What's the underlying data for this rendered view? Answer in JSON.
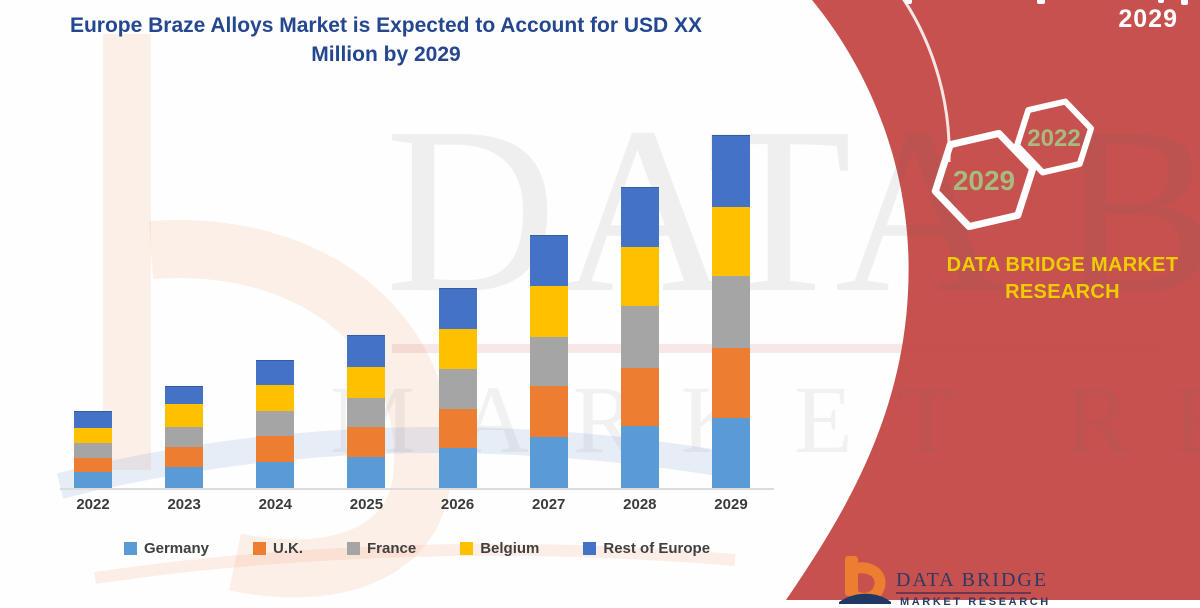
{
  "title": {
    "line1": "Europe Braze Alloys Market is Expected to Account for USD XX",
    "line2": "Million by 2029"
  },
  "chart_data": {
    "type": "bar",
    "stacked": true,
    "title": "Europe Braze Alloys Market is Expected to Account for USD XX Million by 2029",
    "categories": [
      "2022",
      "2023",
      "2024",
      "2025",
      "2026",
      "2027",
      "2028",
      "2029"
    ],
    "series": [
      {
        "name": "Germany",
        "color": "#5B9BD5",
        "values": [
          16,
          21,
          26,
          31,
          40,
          51,
          62,
          70
        ]
      },
      {
        "name": "U.K.",
        "color": "#ED7D31",
        "values": [
          14,
          20,
          26,
          30,
          39,
          51,
          58,
          70
        ]
      },
      {
        "name": "France",
        "color": "#A5A5A5",
        "values": [
          15,
          20,
          25,
          29,
          40,
          49,
          62,
          72
        ]
      },
      {
        "name": "Belgium",
        "color": "#FFC000",
        "values": [
          15,
          23,
          26,
          31,
          40,
          51,
          59,
          69
        ]
      },
      {
        "name": "Rest of Europe",
        "color": "#4472C4",
        "values": [
          17,
          18,
          25,
          32,
          41,
          51,
          60,
          72
        ]
      }
    ],
    "totals_relative": [
      77,
      102,
      128,
      153,
      200,
      253,
      301,
      353
    ],
    "value_axis": "none shown (values are relative estimates; amounts labeled as USD XX Million)",
    "xlabel": "",
    "ylabel": "",
    "grid": false,
    "legend_position": "bottom"
  },
  "watermark": {
    "line1": "DATA BRIDGE",
    "line2": "MARKET RESEARCH"
  },
  "right_panel": {
    "top_year": "2029",
    "hexagons": [
      {
        "label": "2029"
      },
      {
        "label": "2022"
      }
    ],
    "brand_line1": "DATA BRIDGE MARKET",
    "brand_line2": "RESEARCH"
  },
  "footer_logo": {
    "brand": "DATA BRIDGE",
    "sub": "MARKET RESEARCH"
  },
  "colors": {
    "accent_red": "#C6514E",
    "title_navy": "#24478F",
    "brand_yellow": "#EFCE00",
    "hexagon_text_green": "#A8BA7D",
    "axis_gray": "#DCDCDC",
    "footer_navy": "#2B3A64"
  }
}
